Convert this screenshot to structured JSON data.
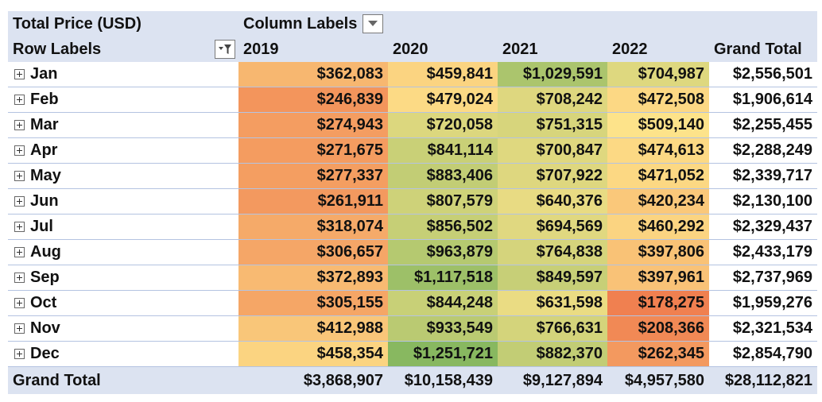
{
  "header": {
    "measure_label": "Total Price (USD)",
    "column_labels": "Column Labels",
    "row_labels": "Row Labels",
    "years": [
      "2019",
      "2020",
      "2021",
      "2022"
    ],
    "grand_total_label": "Grand Total"
  },
  "rows": [
    {
      "label": "Jan",
      "values": [
        "$362,083",
        "$459,841",
        "$1,029,591",
        "$704,987"
      ],
      "total": "$2,556,501"
    },
    {
      "label": "Feb",
      "values": [
        "$246,839",
        "$479,024",
        "$708,242",
        "$472,508"
      ],
      "total": "$1,906,614"
    },
    {
      "label": "Mar",
      "values": [
        "$274,943",
        "$720,058",
        "$751,315",
        "$509,140"
      ],
      "total": "$2,255,455"
    },
    {
      "label": "Apr",
      "values": [
        "$271,675",
        "$841,114",
        "$700,847",
        "$474,613"
      ],
      "total": "$2,288,249"
    },
    {
      "label": "May",
      "values": [
        "$277,337",
        "$883,406",
        "$707,922",
        "$471,052"
      ],
      "total": "$2,339,717"
    },
    {
      "label": "Jun",
      "values": [
        "$261,911",
        "$807,579",
        "$640,376",
        "$420,234"
      ],
      "total": "$2,130,100"
    },
    {
      "label": "Jul",
      "values": [
        "$318,074",
        "$856,502",
        "$694,569",
        "$460,292"
      ],
      "total": "$2,329,437"
    },
    {
      "label": "Aug",
      "values": [
        "$306,657",
        "$963,879",
        "$764,838",
        "$397,806"
      ],
      "total": "$2,433,179"
    },
    {
      "label": "Sep",
      "values": [
        "$372,893",
        "$1,117,518",
        "$849,597",
        "$397,961"
      ],
      "total": "$2,737,969"
    },
    {
      "label": "Oct",
      "values": [
        "$305,155",
        "$844,248",
        "$631,598",
        "$178,275"
      ],
      "total": "$1,959,276"
    },
    {
      "label": "Nov",
      "values": [
        "$412,988",
        "$933,549",
        "$766,631",
        "$208,366"
      ],
      "total": "$2,321,534"
    },
    {
      "label": "Dec",
      "values": [
        "$458,354",
        "$1,251,721",
        "$882,370",
        "$262,345"
      ],
      "total": "$2,854,790"
    }
  ],
  "grand_total": {
    "label": "Grand Total",
    "values": [
      "$3,868,907",
      "$10,158,439",
      "$9,127,894",
      "$4,957,580"
    ],
    "total": "$28,112,821"
  },
  "heat_colors": {
    "low": "#f08050",
    "mid": "#fde38a",
    "high": "#88b860"
  }
}
